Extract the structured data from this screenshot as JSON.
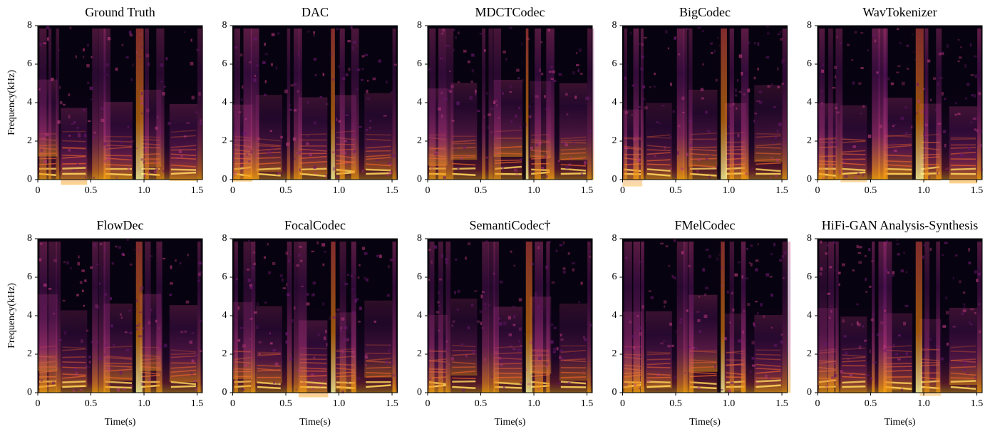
{
  "chart_data": [
    {
      "type": "spectrogram",
      "title": "Ground Truth",
      "ylabel": "Frequency(kHz)",
      "xlim": [
        0,
        1.55
      ],
      "xticks": [
        0,
        0.5,
        {
          "value": 1,
          "label": "1.0"
        },
        1.5
      ],
      "ylim": [
        0,
        8
      ],
      "yticks": [
        0,
        2,
        4,
        6,
        8
      ]
    },
    {
      "type": "spectrogram",
      "title": "DAC",
      "xlim": [
        0,
        1.55
      ],
      "xticks": [
        0,
        0.5,
        {
          "value": 1,
          "label": "1.0"
        },
        1.5
      ],
      "ylim": [
        0,
        8
      ],
      "yticks": [
        0,
        2,
        4,
        6,
        8
      ]
    },
    {
      "type": "spectrogram",
      "title": "MDCTCodec",
      "xlim": [
        0,
        1.55
      ],
      "xticks": [
        0,
        0.5,
        {
          "value": 1,
          "label": "1.0"
        },
        1.5
      ],
      "ylim": [
        0,
        8
      ],
      "yticks": [
        0,
        2,
        4,
        6,
        8
      ]
    },
    {
      "type": "spectrogram",
      "title": "BigCodec",
      "xlim": [
        0,
        1.55
      ],
      "xticks": [
        0,
        0.5,
        {
          "value": 1,
          "label": "1.0"
        },
        1.5
      ],
      "ylim": [
        0,
        8
      ],
      "yticks": [
        0,
        2,
        4,
        6,
        8
      ]
    },
    {
      "type": "spectrogram",
      "title": "WavTokenizer",
      "xlim": [
        0,
        1.55
      ],
      "xticks": [
        0,
        0.5,
        {
          "value": 1,
          "label": "1.0"
        },
        1.5
      ],
      "ylim": [
        0,
        8
      ],
      "yticks": [
        0,
        2,
        4,
        6,
        8
      ]
    },
    {
      "type": "spectrogram",
      "title": "FlowDec",
      "xlabel": "Time(s)",
      "ylabel": "Frequency(kHz)",
      "xlim": [
        0,
        1.55
      ],
      "xticks": [
        0,
        0.5,
        {
          "value": 1,
          "label": "1.0"
        },
        1.5
      ],
      "ylim": [
        0,
        8
      ],
      "yticks": [
        0,
        2,
        4,
        6,
        8
      ]
    },
    {
      "type": "spectrogram",
      "title": "FocalCodec",
      "xlabel": "Time(s)",
      "xlim": [
        0,
        1.55
      ],
      "xticks": [
        0,
        0.5,
        {
          "value": 1,
          "label": "1.0"
        },
        1.5
      ],
      "ylim": [
        0,
        8
      ],
      "yticks": [
        0,
        2,
        4,
        6,
        8
      ]
    },
    {
      "type": "spectrogram",
      "title": "SemantiCodec†",
      "xlabel": "Time(s)",
      "xlim": [
        0,
        1.55
      ],
      "xticks": [
        0,
        0.5,
        {
          "value": 1,
          "label": "1.0"
        },
        1.5
      ],
      "ylim": [
        0,
        8
      ],
      "yticks": [
        0,
        2,
        4,
        6,
        8
      ]
    },
    {
      "type": "spectrogram",
      "title": "FMelCodec",
      "xlabel": "Time(s)",
      "xlim": [
        0,
        1.55
      ],
      "xticks": [
        0,
        0.5,
        {
          "value": 1,
          "label": "1.0"
        },
        1.5
      ],
      "ylim": [
        0,
        8
      ],
      "yticks": [
        0,
        2,
        4,
        6,
        8
      ]
    },
    {
      "type": "spectrogram",
      "title": "HiFi-GAN Analysis-Synthesis",
      "xlabel": "Time(s)",
      "xlim": [
        0,
        1.55
      ],
      "xticks": [
        0,
        0.5,
        {
          "value": 1,
          "label": "1.0"
        },
        1.5
      ],
      "ylim": [
        0,
        8
      ],
      "yticks": [
        0,
        2,
        4,
        6,
        8
      ]
    }
  ]
}
